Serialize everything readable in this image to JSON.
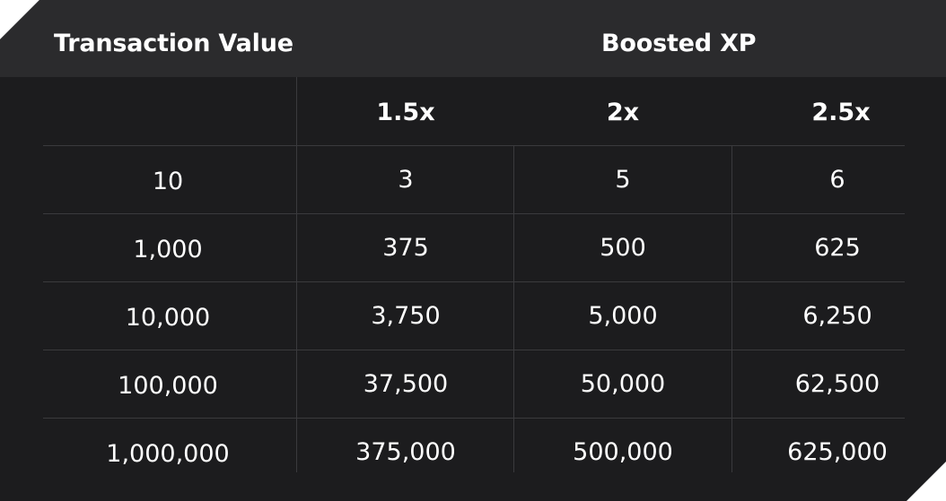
{
  "table": {
    "header": {
      "left": "Transaction Value",
      "right": "Boosted XP"
    },
    "multipliers": [
      "1.5x",
      "2x",
      "2.5x"
    ],
    "rows": [
      {
        "value": "10",
        "cells": [
          "3",
          "5",
          "6"
        ]
      },
      {
        "value": "1,000",
        "cells": [
          "375",
          "500",
          "625"
        ]
      },
      {
        "value": "10,000",
        "cells": [
          "3,750",
          "5,000",
          "6,250"
        ]
      },
      {
        "value": "100,000",
        "cells": [
          "37,500",
          "50,000",
          "62,500"
        ]
      },
      {
        "value": "1,000,000",
        "cells": [
          "375,000",
          "500,000",
          "625,000"
        ]
      }
    ]
  }
}
